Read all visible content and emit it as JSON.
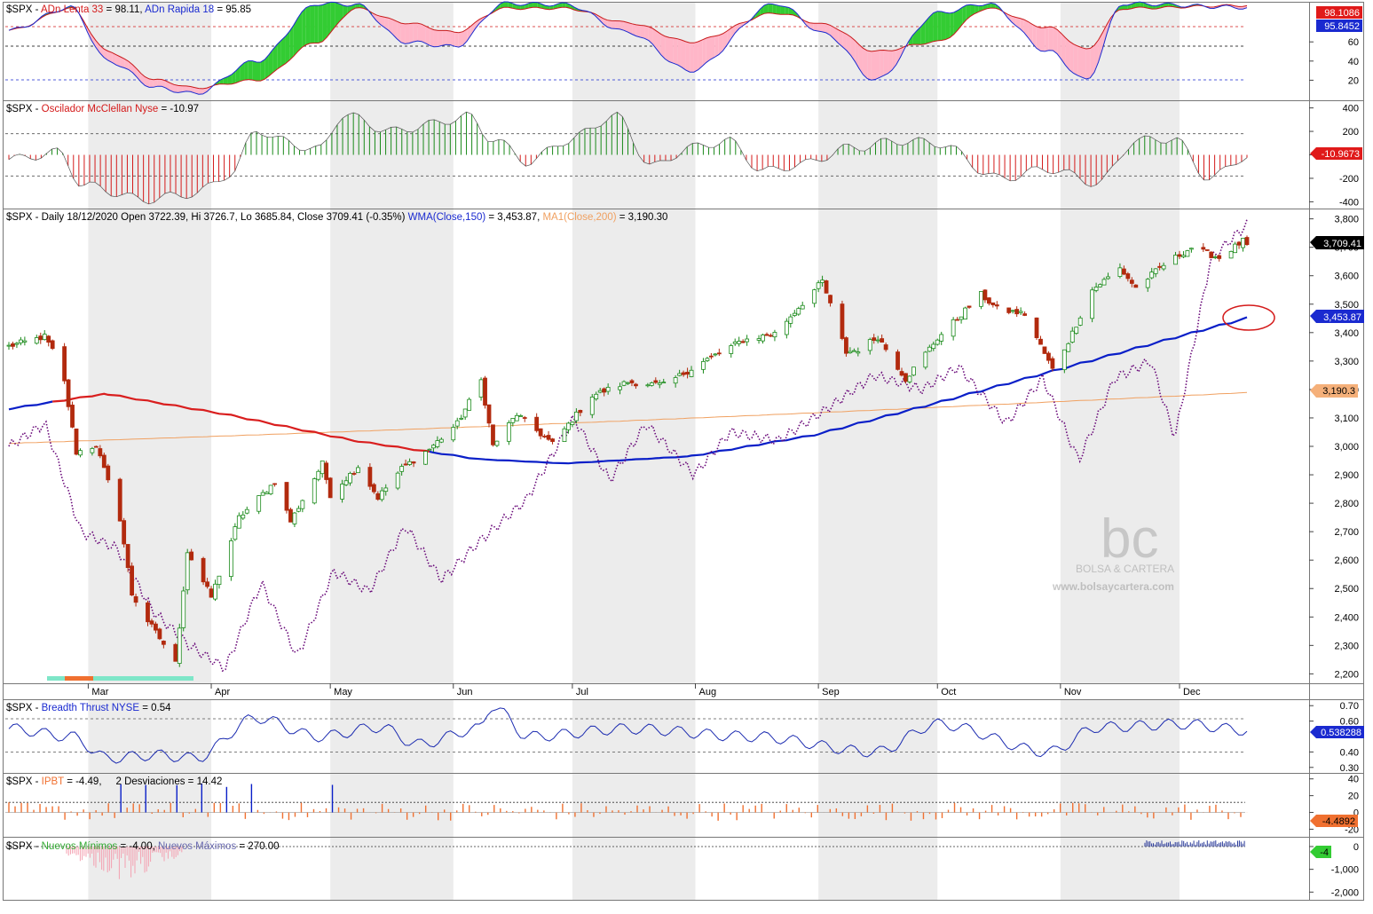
{
  "watermark": {
    "logo_text": "bc",
    "name": "BOLSA & CARTERA",
    "url": "www.bolsaycartera.com"
  },
  "colors": {
    "background": "#ffffff",
    "band": "#ececec",
    "up_candle": "#1a8a1a",
    "down_candle": "#b22a0e",
    "wma150": "#0a1fc8",
    "ma200": "#f0a060",
    "ma_below": "#d91e1e",
    "dotted_purple": "#6a0a7a",
    "adn_fill_up": "#33cc33",
    "adn_fill_down": "#ffb6c8",
    "mcclellan_pos": "#1a8a1a",
    "mcclellan_neg": "#d41a1a",
    "breadth_line": "#1a2ab0",
    "ipbt_bar": "#f07030",
    "ipbt_spike": "#0a1fc8",
    "new_lows": "#f4a0b0",
    "new_highs": "#2a3a9a",
    "annotation_ellipse": "#d41a1a"
  },
  "months": [
    "Mar",
    "Apr",
    "May",
    "Jun",
    "Jul",
    "Aug",
    "Sep",
    "Oct",
    "Nov",
    "Dec"
  ],
  "panels": {
    "adn": {
      "symbol": "$SPX - ",
      "label1": "ADn Lenta 33",
      "value1": " = 98.11, ",
      "label2": "ADn Rapida 18",
      "value2": " = 95.85",
      "ticks": [
        "60",
        "40",
        "20"
      ],
      "badge_red": "98.1086",
      "badge_blue": "95.8452"
    },
    "mcclellan": {
      "symbol": "$SPX - ",
      "label": "Oscilador McClellan Nyse",
      "value": " = -10.97",
      "ticks": [
        "400",
        "200",
        "0",
        "-200",
        "-400"
      ],
      "badge": "-10.9673"
    },
    "price": {
      "title_main": "$SPX - Daily 18/12/2020 Open 3722.39, Hi 3726.7, Lo 3685.84, Close 3709.41 (-0.35%) ",
      "wma_label": "WMA(Close,150)",
      "wma_value": " = 3,453.87, ",
      "ma_label": "MA1(Close,200)",
      "ma_value": " = 3,190.30",
      "ticks": [
        "3,800",
        "3,700",
        "3,600",
        "3,500",
        "3,400",
        "3,300",
        "3,200",
        "3,100",
        "3,000",
        "2,900",
        "2,800",
        "2,700",
        "2,600",
        "2,500",
        "2,400",
        "2,300",
        "2,200"
      ],
      "badge_close": "3,709.41",
      "badge_wma": "3,453.87",
      "badge_ma": "3,190.3"
    },
    "breadth": {
      "symbol": "$SPX - ",
      "label": "Breadth Thrust NYSE",
      "value": " = 0.54",
      "ticks": [
        "0.70",
        "0.60",
        "0.40",
        "0.30"
      ],
      "badge": "0.538288"
    },
    "ipbt": {
      "symbol": "$SPX - ",
      "label": "IPBT",
      "value": " = -4.49,     2 Desviaciones = 14.42",
      "ticks": [
        "40",
        "20",
        "0",
        "-20"
      ],
      "badge": "-4.4892"
    },
    "newhl": {
      "symbol": "$SPX - ",
      "label1": "Nuevos Mínimos",
      "value1": " = -4.00, ",
      "label2": "Nuevos Máximos",
      "value2": " = 270.00",
      "ticks": [
        "0",
        "-1,000",
        "-2,000"
      ],
      "badge": "-4"
    }
  },
  "chart_data": [
    {
      "type": "candlestick",
      "title": "$SPX - Daily 18/12/2020 Open 3722.39, Hi 3726.7, Lo 3685.84, Close 3709.41 (-0.35%)",
      "x_labels": [
        "Mar",
        "Apr",
        "May",
        "Jun",
        "Jul",
        "Aug",
        "Sep",
        "Oct",
        "Nov",
        "Dec"
      ],
      "ylim": [
        2170,
        3830
      ],
      "close_path": [
        [
          "2020-02-10",
          3352
        ],
        [
          "2020-02-19",
          3386
        ],
        [
          "2020-02-21",
          3337
        ],
        [
          "2020-02-24",
          3225
        ],
        [
          "2020-02-27",
          2979
        ],
        [
          "2020-03-03",
          3003
        ],
        [
          "2020-03-09",
          2746
        ],
        [
          "2020-03-12",
          2480
        ],
        [
          "2020-03-16",
          2386
        ],
        [
          "2020-03-20",
          2305
        ],
        [
          "2020-03-23",
          2237
        ],
        [
          "2020-03-26",
          2630
        ],
        [
          "2020-04-01",
          2470
        ],
        [
          "2020-04-08",
          2749
        ],
        [
          "2020-04-17",
          2875
        ],
        [
          "2020-04-21",
          2736
        ],
        [
          "2020-04-29",
          2939
        ],
        [
          "2020-05-01",
          2830
        ],
        [
          "2020-05-08",
          2930
        ],
        [
          "2020-05-13",
          2820
        ],
        [
          "2020-05-19",
          2922
        ],
        [
          "2020-05-26",
          2991
        ],
        [
          "2020-06-02",
          3080
        ],
        [
          "2020-06-08",
          3232
        ],
        [
          "2020-06-11",
          3002
        ],
        [
          "2020-06-17",
          3113
        ],
        [
          "2020-06-26",
          3009
        ],
        [
          "2020-07-06",
          3179
        ],
        [
          "2020-07-15",
          3226
        ],
        [
          "2020-07-24",
          3215
        ],
        [
          "2020-08-04",
          3306
        ],
        [
          "2020-08-13",
          3373
        ],
        [
          "2020-08-21",
          3397
        ],
        [
          "2020-09-02",
          3580
        ],
        [
          "2020-09-08",
          3331
        ],
        [
          "2020-09-11",
          3340
        ],
        [
          "2020-09-16",
          3385
        ],
        [
          "2020-09-23",
          3237
        ],
        [
          "2020-10-01",
          3380
        ],
        [
          "2020-10-12",
          3534
        ],
        [
          "2020-10-16",
          3483
        ],
        [
          "2020-10-23",
          3465
        ],
        [
          "2020-10-30",
          3270
        ],
        [
          "2020-11-03",
          3369
        ],
        [
          "2020-11-09",
          3550
        ],
        [
          "2020-11-16",
          3626
        ],
        [
          "2020-11-20",
          3557
        ],
        [
          "2020-11-27",
          3638
        ],
        [
          "2020-12-04",
          3699
        ],
        [
          "2020-12-11",
          3663
        ],
        [
          "2020-12-17",
          3722
        ],
        [
          "2020-12-18",
          3709
        ]
      ],
      "series": [
        {
          "name": "WMA(Close,150)",
          "last": 3453.87
        },
        {
          "name": "MA1(Close,200)",
          "last": 3190.3
        }
      ]
    },
    {
      "type": "area",
      "title": "ADn Lenta 33 / ADn Rapida 18",
      "ylim": [
        0,
        100
      ],
      "series": [
        {
          "name": "ADn Lenta 33",
          "last": 98.11
        },
        {
          "name": "ADn Rapida 18",
          "last": 95.85
        }
      ]
    },
    {
      "type": "bar",
      "title": "Oscilador McClellan Nyse",
      "ylim": [
        -450,
        450
      ],
      "series": [
        {
          "name": "Oscilador McClellan Nyse",
          "last": -10.97
        }
      ]
    },
    {
      "type": "line",
      "title": "Breadth Thrust NYSE",
      "ylim": [
        0.27,
        0.73
      ],
      "series": [
        {
          "name": "Breadth Thrust NYSE",
          "last": 0.54
        }
      ]
    },
    {
      "type": "bar",
      "title": "IPBT",
      "ylim": [
        -28,
        45
      ],
      "series": [
        {
          "name": "IPBT",
          "last": -4.49
        },
        {
          "name": "2 Desviaciones",
          "last": 14.42
        }
      ]
    },
    {
      "type": "bar",
      "title": "Nuevos Mínimos / Nuevos Máximos",
      "ylim": [
        -2300,
        350
      ],
      "series": [
        {
          "name": "Nuevos Mínimos",
          "last": -4.0
        },
        {
          "name": "Nuevos Máximos",
          "last": 270.0
        }
      ]
    }
  ]
}
